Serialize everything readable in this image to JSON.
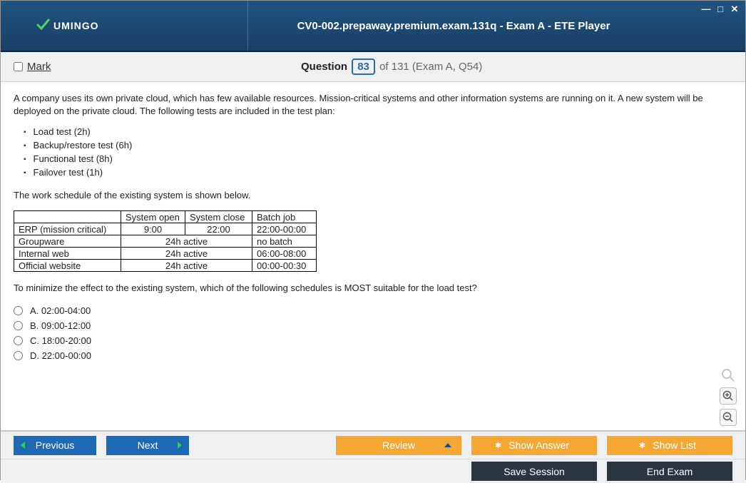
{
  "window": {
    "title": "CV0-002.prepaway.premium.exam.131q - Exam A - ETE Player",
    "brand": "UMINGO"
  },
  "question_bar": {
    "mark_label": "Mark",
    "question_label": "Question",
    "current": "83",
    "total_text": " of 131 (Exam A, Q54)"
  },
  "question": {
    "intro": "A company uses its own private cloud, which has few available resources. Mission-critical systems and other information systems are running on it. A new system will be deployed on the private cloud. The following tests are included in the test plan:",
    "tests": [
      "Load test (2h)",
      "Backup/restore test (6h)",
      "Functional test (8h)",
      "Failover test (1h)"
    ],
    "schedule_intro": "The work schedule of the existing system is shown below.",
    "table": {
      "headers": [
        "",
        "System open",
        "System close",
        "Batch job"
      ],
      "rows": [
        [
          "ERP (mission critical)",
          "9:00",
          "22:00",
          "22:00-00:00"
        ],
        [
          "Groupware",
          "24h active",
          "",
          "no batch"
        ],
        [
          "Internal web",
          "24h active",
          "",
          "06:00-08:00"
        ],
        [
          "Official website",
          "24h active",
          "",
          "00:00-00:30"
        ]
      ],
      "merge_cols_1_2_for_rows": [
        1,
        2,
        3
      ]
    },
    "prompt": "To minimize the effect to the existing system, which of the following schedules is MOST suitable for the load test?",
    "options": [
      {
        "letter": "A.",
        "text": "02:00-04:00"
      },
      {
        "letter": "B.",
        "text": "09:00-12:00"
      },
      {
        "letter": "C.",
        "text": "18:00-20:00"
      },
      {
        "letter": "D.",
        "text": "22:00-00:00"
      }
    ]
  },
  "footer": {
    "previous": "Previous",
    "next": "Next",
    "review": "Review",
    "show_answer": "Show Answer",
    "show_list": "Show List",
    "save_session": "Save Session",
    "end_exam": "End Exam"
  },
  "colors": {
    "titlebar_top": "#215380",
    "titlebar_bottom": "#1a3f63",
    "blue_btn": "#1d69b4",
    "orange_btn": "#f5a733",
    "dark_btn": "#2b3540",
    "accent_green": "#2fd04a"
  }
}
